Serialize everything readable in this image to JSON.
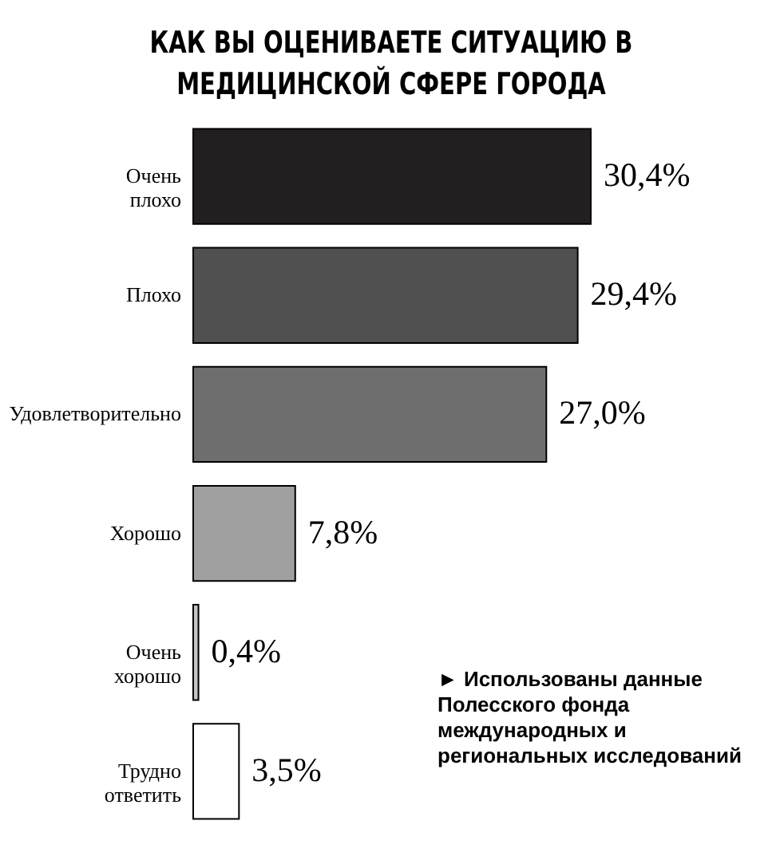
{
  "chart_data": {
    "type": "bar",
    "orientation": "horizontal",
    "title": "КАК ВЫ ОЦЕНИВАЕТЕ СИТУАЦИЮ В МЕДИЦИНСКОЙ СФЕРЕ ГОРОДА",
    "categories": [
      "Очень плохо",
      "Плохо",
      "Удовлетворительно",
      "Хорошо",
      "Очень хорошо",
      "Трудно ответить"
    ],
    "values": [
      30.4,
      29.4,
      27.0,
      7.8,
      0.4,
      3.5
    ],
    "value_labels": [
      "30,4%",
      "29,4%",
      "27,0%",
      "7,8%",
      "0,4%",
      "3,5%"
    ],
    "colors": [
      "#231f20",
      "#505050",
      "#6e6e6e",
      "#a0a0a0",
      "#c4c4c4",
      "#ffffff"
    ],
    "annotations": [
      "► Использованы данные Полесского фонда международных и региональных исследований"
    ]
  }
}
